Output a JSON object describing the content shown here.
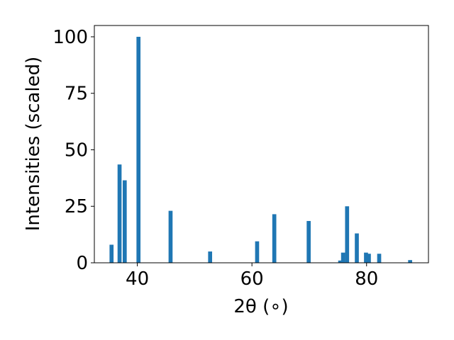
{
  "chart_data": {
    "type": "bar",
    "xlabel": "2θ (∘)",
    "ylabel": "Intensities (scaled)",
    "xlim": [
      32.5,
      90.8
    ],
    "ylim": [
      0,
      105
    ],
    "grid": false,
    "bar_color": "#1f77b4",
    "bar_width": 0.7,
    "x_ticks": [
      40,
      60,
      80
    ],
    "y_ticks": [
      0,
      25,
      50,
      75,
      100
    ],
    "x": [
      35.5,
      36.9,
      37.8,
      40.2,
      45.8,
      52.7,
      60.9,
      63.9,
      69.9,
      75.4,
      75.9,
      76.6,
      78.3,
      79.9,
      80.4,
      82.2,
      87.6
    ],
    "values": [
      8,
      43.5,
      36.5,
      100,
      23,
      5,
      9.5,
      21.5,
      18.5,
      1,
      4.5,
      25,
      13,
      4.5,
      4,
      4,
      1.2
    ]
  }
}
